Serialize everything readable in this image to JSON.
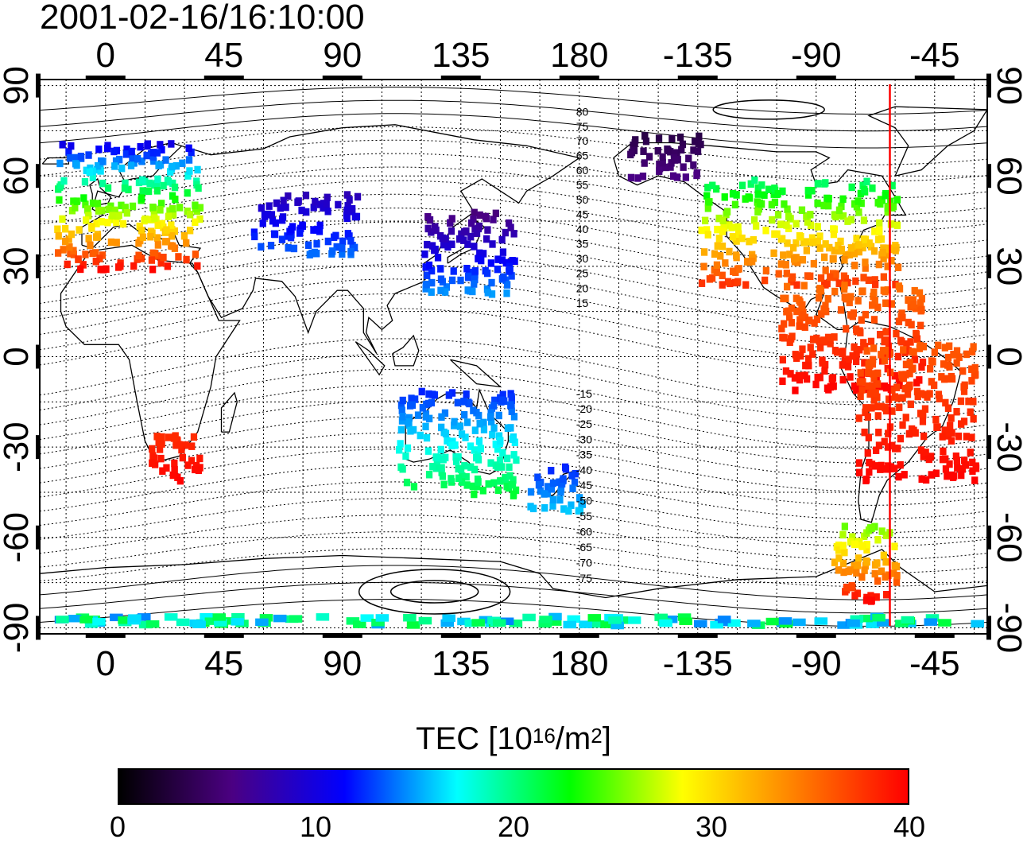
{
  "title": "2001-02-16/16:10:00",
  "map": {
    "x_tick_labels": [
      "0",
      "45",
      "90",
      "135",
      "180",
      "-135",
      "-90",
      "-45"
    ],
    "x_tick_longitudes": [
      0,
      45,
      90,
      135,
      180,
      225,
      270,
      315
    ],
    "y_tick_labels": [
      "90",
      "60",
      "30",
      "0",
      "-30",
      "-60",
      "-90"
    ],
    "y_tick_latitudes": [
      90,
      60,
      30,
      0,
      -30,
      -60,
      -90
    ],
    "lon_range": [
      -25,
      335
    ],
    "lat_range": [
      -92,
      92
    ],
    "grid": true,
    "marker_longitude": -62,
    "marker_color": "#ff0000",
    "contour_labels": [
      "80",
      "75",
      "70",
      "65",
      "60",
      "55",
      "50",
      "45",
      "40",
      "35",
      "30",
      "25",
      "20",
      "15",
      "-15",
      "-20",
      "-25",
      "-30",
      "-35",
      "-40",
      "-45",
      "-50",
      "-55",
      "-60",
      "-65",
      "-70",
      "-75"
    ]
  },
  "colorbar": {
    "label_prefix": "TEC  [10",
    "label_exp": "16",
    "label_mid": "/m",
    "label_exp2": "2",
    "label_suffix": "]",
    "ticks": [
      "0",
      "10",
      "20",
      "30",
      "40"
    ],
    "tick_values": [
      0,
      10,
      20,
      30,
      40
    ],
    "range": [
      0,
      40
    ],
    "colors": [
      "#000000",
      "#4b0082",
      "#0000ff",
      "#00ffff",
      "#00ff00",
      "#ffff00",
      "#ff8000",
      "#ff0000"
    ]
  },
  "chart_data": {
    "type": "heatmap",
    "title": "2001-02-16/16:10:00",
    "xlabel": "",
    "ylabel": "",
    "value_label": "TEC  [10^16/m^2]",
    "value_range": [
      0,
      40
    ],
    "xlim": [
      -25,
      335
    ],
    "ylim": [
      -92,
      92
    ],
    "regions": [
      {
        "lon": [
          -20,
          35
        ],
        "lat": [
          30,
          72
        ],
        "tec": [
          10,
          40
        ]
      },
      {
        "lon": [
          55,
          95
        ],
        "lat": [
          35,
          55
        ],
        "tec": [
          8,
          14
        ]
      },
      {
        "lon": [
          120,
          155
        ],
        "lat": [
          22,
          50
        ],
        "tec": [
          5,
          15
        ]
      },
      {
        "lon": [
          198,
          225
        ],
        "lat": [
          60,
          75
        ],
        "tec": [
          3,
          6
        ]
      },
      {
        "lon": [
          225,
          300
        ],
        "lat": [
          25,
          60
        ],
        "tec": [
          20,
          38
        ]
      },
      {
        "lon": [
          255,
          310
        ],
        "lat": [
          -10,
          25
        ],
        "tec": [
          35,
          40
        ]
      },
      {
        "lon": [
          285,
          330
        ],
        "lat": [
          -40,
          5
        ],
        "tec": [
          36,
          40
        ]
      },
      {
        "lon": [
          15,
          35
        ],
        "lat": [
          -40,
          -25
        ],
        "tec": [
          38,
          40
        ]
      },
      {
        "lon": [
          110,
          155
        ],
        "lat": [
          -45,
          -10
        ],
        "tec": [
          12,
          22
        ]
      },
      {
        "lon": [
          160,
          180
        ],
        "lat": [
          -50,
          -35
        ],
        "tec": [
          12,
          16
        ]
      },
      {
        "lon": [
          275,
          300
        ],
        "lat": [
          -80,
          -55
        ],
        "tec": [
          25,
          40
        ]
      },
      {
        "lon": [
          -20,
          330
        ],
        "lat": [
          -88,
          -85
        ],
        "tec": [
          14,
          22
        ]
      }
    ]
  }
}
